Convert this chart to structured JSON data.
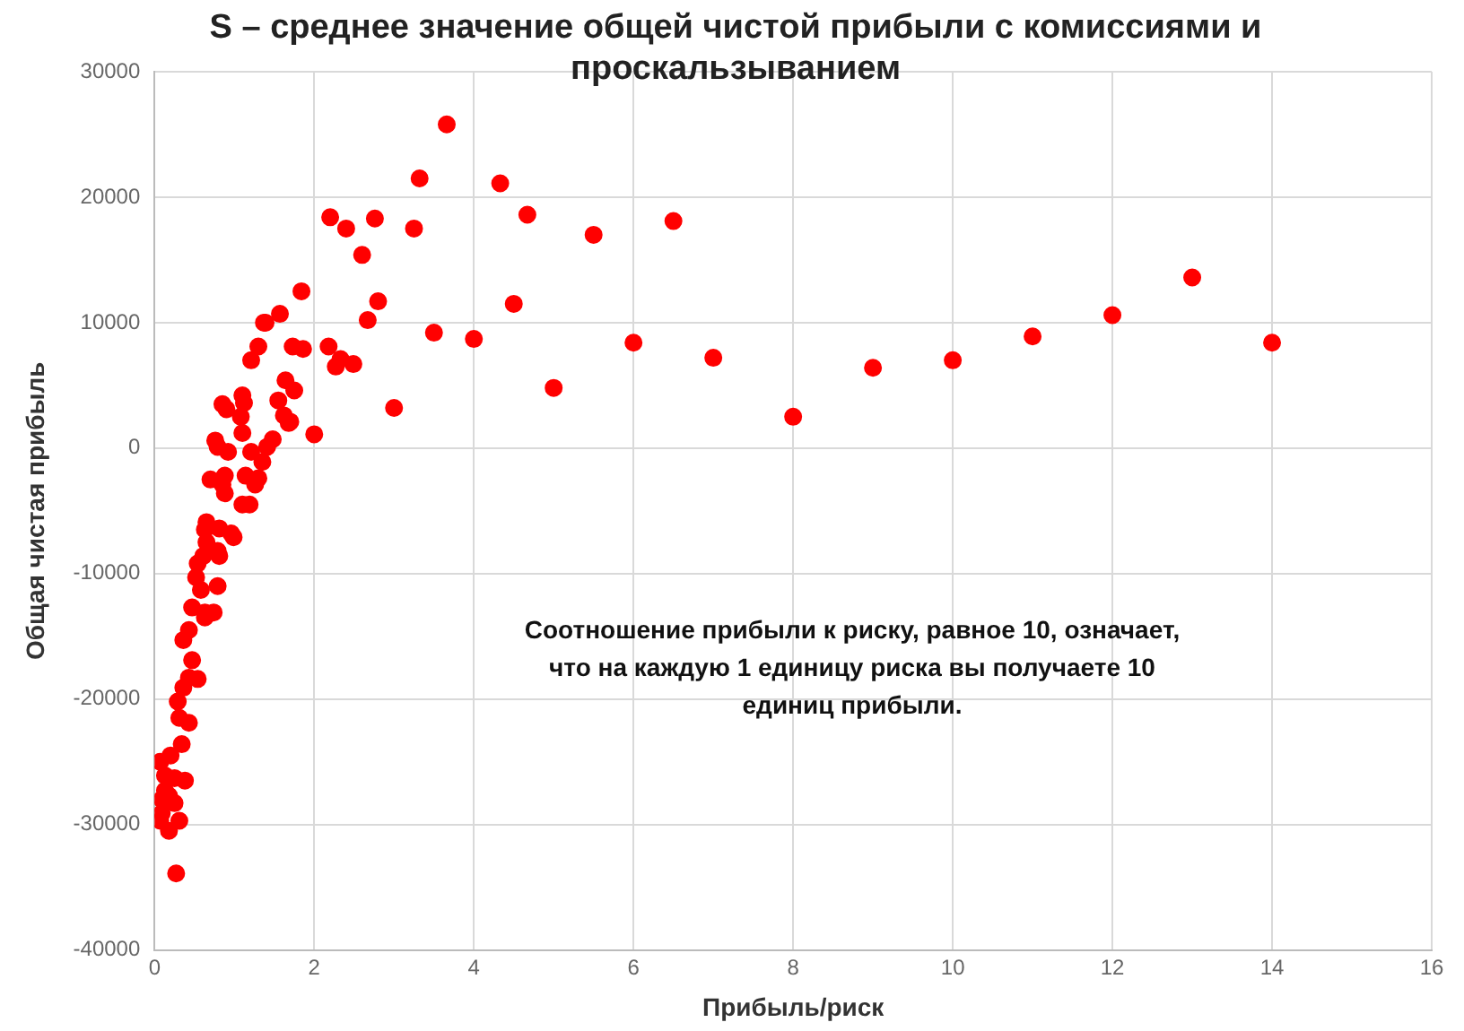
{
  "chart_data": {
    "type": "scatter",
    "title": "S – среднее значение общей чистой прибыли с комиссиями и проскальзыванием",
    "xlabel": "Прибыль/риск",
    "ylabel": "Общая чистая прибыль",
    "annotations": [
      "Соотношение прибыли к риску, равное 10, означает, что на каждую 1 единицу риска вы получаете 10 единиц прибыли."
    ],
    "xlim": [
      0,
      16
    ],
    "xticks": [
      0,
      2,
      4,
      6,
      8,
      10,
      12,
      14,
      16
    ],
    "ylim": [
      -40000,
      30000
    ],
    "yticks": [
      -40000,
      -30000,
      -20000,
      -10000,
      0,
      10000,
      20000,
      30000
    ],
    "grid": true,
    "legend": false,
    "marker": "circle",
    "series": [
      {
        "color": "#ff0000",
        "x": [
          6,
          6.5,
          7,
          8,
          9,
          10,
          11,
          12,
          13,
          14,
          5.5,
          5,
          4.67,
          4.5,
          4.33,
          4,
          3.66,
          3.5,
          3.32,
          3.25,
          3,
          2.76,
          2.8,
          2.67,
          2.6,
          2.49,
          2.4,
          2.33,
          2.27,
          2.2,
          2.18,
          2,
          1.84,
          1.73,
          1.86,
          1.75,
          1.7,
          1.57,
          1.39,
          1.37,
          1.3,
          1.21,
          1.64,
          1.55,
          1.1,
          1.12,
          0.85,
          0.9,
          1.08,
          1.62,
          1.68,
          1.1,
          0.76,
          0.79,
          1.48,
          1.41,
          0.92,
          1.21,
          1.35,
          0.7,
          0.88,
          0.85,
          1.14,
          1.3,
          1.26,
          0.88,
          1.1,
          1.19,
          0.65,
          0.81,
          0.96,
          0.99,
          0.63,
          0.65,
          0.79,
          0.61,
          0.81,
          0.54,
          0.52,
          0.79,
          0.58,
          0.47,
          0.63,
          0.74,
          0.63,
          0.43,
          0.36,
          0.47,
          0.43,
          0.54,
          0.36,
          0.29,
          0.31,
          0.43,
          0.34,
          0.07,
          0.2,
          0.13,
          0.25,
          0.38,
          0.13,
          0.18,
          0.09,
          0.25,
          0.09,
          0.07,
          0.31,
          0.18,
          0.27
        ],
        "values": [
          8400,
          18100,
          7200,
          2500,
          6400,
          7000,
          8900,
          10600,
          13600,
          8400,
          17000,
          4800,
          18600,
          11500,
          21100,
          8700,
          25800,
          9200,
          21500,
          17500,
          3200,
          18300,
          11700,
          10200,
          15400,
          6700,
          17500,
          7100,
          6500,
          18400,
          8100,
          1100,
          12500,
          8100,
          7900,
          4600,
          2100,
          10700,
          10000,
          10000,
          8100,
          7000,
          5400,
          3800,
          4200,
          3600,
          3500,
          3100,
          2500,
          2600,
          2000,
          1200,
          600,
          100,
          700,
          100,
          -300,
          -300,
          -1100,
          -2500,
          -2200,
          -2900,
          -2200,
          -2400,
          -2900,
          -3600,
          -4500,
          -4500,
          -5900,
          -6400,
          -6800,
          -7100,
          -6500,
          -7500,
          -8200,
          -8600,
          -8600,
          -9200,
          -10300,
          -11000,
          -11300,
          -12700,
          -13100,
          -13100,
          -13500,
          -14500,
          -15300,
          -16900,
          -18300,
          -18400,
          -19100,
          -20200,
          -21500,
          -21900,
          -23600,
          -25000,
          -24500,
          -26100,
          -26300,
          -26500,
          -27300,
          -27700,
          -28000,
          -28300,
          -29100,
          -29700,
          -29700,
          -30500,
          -33900
        ]
      }
    ]
  }
}
